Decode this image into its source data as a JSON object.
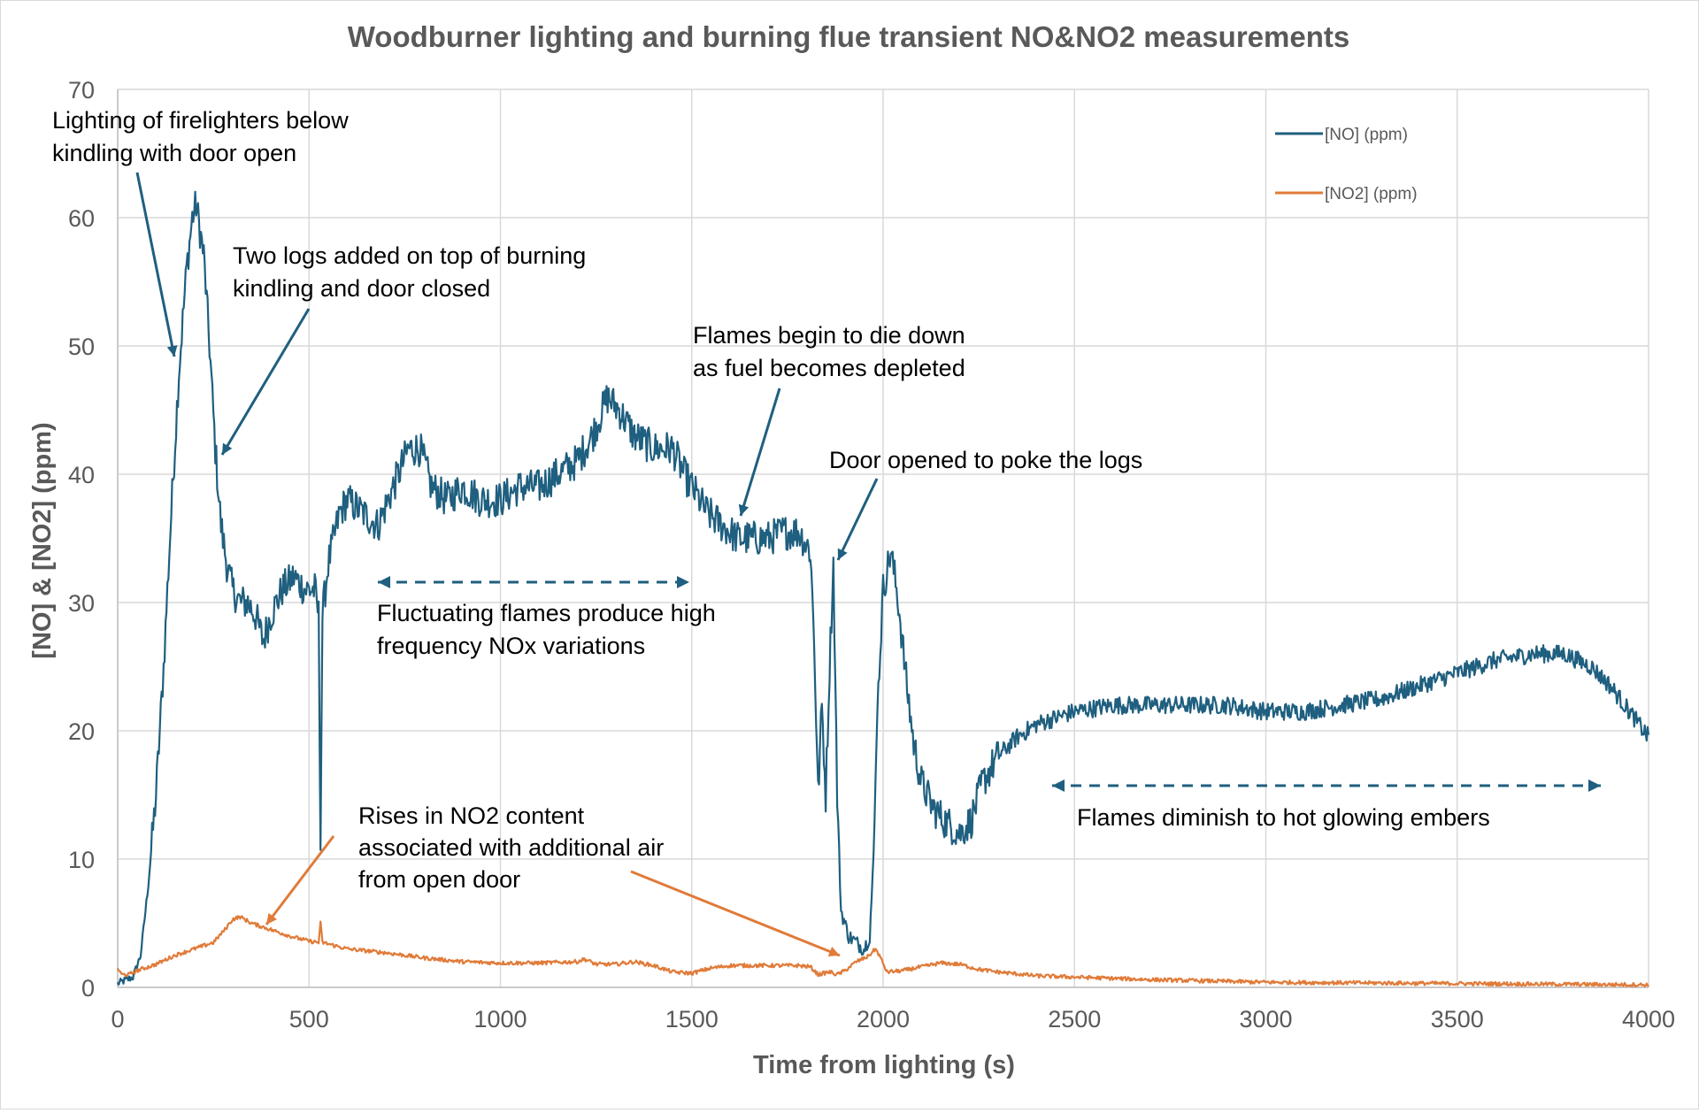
{
  "chart_data": {
    "type": "line",
    "title": "Woodburner lighting and burning flue transient NO&NO2 measurements",
    "xlabel": "Time from lighting (s)",
    "ylabel": "[NO] & [NO2] (ppm)",
    "xlim": [
      0,
      4000
    ],
    "ylim": [
      0,
      70
    ],
    "xticks": [
      "0",
      "500",
      "1000",
      "1500",
      "2000",
      "2500",
      "3000",
      "3500",
      "4000"
    ],
    "yticks": [
      "0",
      "10",
      "20",
      "30",
      "40",
      "50",
      "60",
      "70"
    ],
    "grid": true,
    "legend_position": "top-right",
    "series": [
      {
        "name": "[NO] (ppm)",
        "color": "#1f5f7f",
        "noise": 1.4,
        "points": [
          [
            0,
            0.3
          ],
          [
            40,
            0.8
          ],
          [
            60,
            2.5
          ],
          [
            80,
            8
          ],
          [
            100,
            15
          ],
          [
            120,
            25
          ],
          [
            140,
            37
          ],
          [
            160,
            48
          ],
          [
            180,
            56
          ],
          [
            195,
            60
          ],
          [
            205,
            61
          ],
          [
            215,
            59
          ],
          [
            225,
            57
          ],
          [
            240,
            50
          ],
          [
            255,
            42
          ],
          [
            270,
            36
          ],
          [
            285,
            33
          ],
          [
            300,
            31
          ],
          [
            320,
            30
          ],
          [
            340,
            30
          ],
          [
            360,
            29
          ],
          [
            380,
            27
          ],
          [
            400,
            29
          ],
          [
            430,
            31
          ],
          [
            460,
            32
          ],
          [
            490,
            31
          ],
          [
            515,
            31
          ],
          [
            525,
            29
          ],
          [
            530,
            12
          ],
          [
            535,
            29
          ],
          [
            550,
            33
          ],
          [
            580,
            37
          ],
          [
            600,
            38
          ],
          [
            640,
            37
          ],
          [
            680,
            36
          ],
          [
            720,
            39
          ],
          [
            760,
            42
          ],
          [
            790,
            42
          ],
          [
            820,
            39
          ],
          [
            860,
            38
          ],
          [
            900,
            39
          ],
          [
            950,
            38
          ],
          [
            1000,
            38
          ],
          [
            1050,
            39
          ],
          [
            1100,
            39
          ],
          [
            1150,
            40
          ],
          [
            1200,
            41
          ],
          [
            1240,
            43
          ],
          [
            1280,
            46
          ],
          [
            1310,
            45
          ],
          [
            1350,
            43
          ],
          [
            1400,
            42
          ],
          [
            1450,
            42
          ],
          [
            1480,
            40
          ],
          [
            1500,
            39
          ],
          [
            1540,
            37
          ],
          [
            1580,
            36
          ],
          [
            1620,
            35
          ],
          [
            1660,
            35
          ],
          [
            1700,
            35
          ],
          [
            1740,
            35.5
          ],
          [
            1780,
            35.5
          ],
          [
            1810,
            34
          ],
          [
            1820,
            27
          ],
          [
            1830,
            15
          ],
          [
            1840,
            22
          ],
          [
            1850,
            15
          ],
          [
            1860,
            25
          ],
          [
            1870,
            33
          ],
          [
            1880,
            15
          ],
          [
            1890,
            6
          ],
          [
            1910,
            4
          ],
          [
            1930,
            3.5
          ],
          [
            1950,
            3
          ],
          [
            1965,
            4
          ],
          [
            1975,
            10
          ],
          [
            1985,
            22
          ],
          [
            2000,
            31
          ],
          [
            2020,
            34
          ],
          [
            2040,
            30
          ],
          [
            2060,
            24
          ],
          [
            2080,
            19
          ],
          [
            2100,
            16
          ],
          [
            2130,
            14
          ],
          [
            2160,
            13
          ],
          [
            2200,
            12
          ],
          [
            2230,
            13
          ],
          [
            2260,
            16
          ],
          [
            2300,
            18
          ],
          [
            2350,
            19.5
          ],
          [
            2400,
            20.5
          ],
          [
            2500,
            21.5
          ],
          [
            2600,
            22
          ],
          [
            2700,
            22
          ],
          [
            2800,
            22
          ],
          [
            2900,
            22
          ],
          [
            3000,
            21.5
          ],
          [
            3100,
            21.5
          ],
          [
            3200,
            22
          ],
          [
            3300,
            22.5
          ],
          [
            3400,
            23.5
          ],
          [
            3500,
            24.5
          ],
          [
            3600,
            25.5
          ],
          [
            3700,
            26
          ],
          [
            3780,
            26
          ],
          [
            3850,
            25
          ],
          [
            3900,
            23.5
          ],
          [
            3950,
            21.5
          ],
          [
            4000,
            19.5
          ]
        ]
      },
      {
        "name": "[NO2] (ppm)",
        "color": "#e07b39",
        "noise": 0.15,
        "points": [
          [
            0,
            1.5
          ],
          [
            10,
            1.0
          ],
          [
            30,
            1.0
          ],
          [
            50,
            1.3
          ],
          [
            100,
            1.8
          ],
          [
            150,
            2.5
          ],
          [
            200,
            3.0
          ],
          [
            250,
            3.5
          ],
          [
            280,
            4.5
          ],
          [
            300,
            5.3
          ],
          [
            320,
            5.5
          ],
          [
            350,
            5.0
          ],
          [
            400,
            4.5
          ],
          [
            450,
            4.0
          ],
          [
            500,
            3.6
          ],
          [
            525,
            3.5
          ],
          [
            530,
            5.0
          ],
          [
            535,
            3.5
          ],
          [
            600,
            3.0
          ],
          [
            700,
            2.7
          ],
          [
            800,
            2.3
          ],
          [
            900,
            2.0
          ],
          [
            1000,
            1.9
          ],
          [
            1100,
            1.9
          ],
          [
            1200,
            2.0
          ],
          [
            1220,
            2.2
          ],
          [
            1250,
            1.8
          ],
          [
            1300,
            1.8
          ],
          [
            1350,
            2.0
          ],
          [
            1400,
            1.7
          ],
          [
            1450,
            1.2
          ],
          [
            1500,
            1.1
          ],
          [
            1550,
            1.5
          ],
          [
            1600,
            1.7
          ],
          [
            1700,
            1.7
          ],
          [
            1780,
            1.7
          ],
          [
            1810,
            1.6
          ],
          [
            1830,
            1.0
          ],
          [
            1860,
            1.2
          ],
          [
            1880,
            1.0
          ],
          [
            1900,
            1.3
          ],
          [
            1930,
            2.0
          ],
          [
            1960,
            2.4
          ],
          [
            1980,
            3.0
          ],
          [
            1990,
            2.5
          ],
          [
            2010,
            1.2
          ],
          [
            2050,
            1.3
          ],
          [
            2100,
            1.6
          ],
          [
            2150,
            1.9
          ],
          [
            2200,
            1.8
          ],
          [
            2250,
            1.4
          ],
          [
            2300,
            1.2
          ],
          [
            2400,
            0.9
          ],
          [
            2500,
            0.8
          ],
          [
            2700,
            0.6
          ],
          [
            3000,
            0.4
          ],
          [
            3500,
            0.3
          ],
          [
            4000,
            0.2
          ]
        ]
      }
    ],
    "annotations": [
      {
        "id": "lighting",
        "lines": [
          "Lighting of firelighters below",
          "kindling with door open"
        ]
      },
      {
        "id": "logs",
        "lines": [
          "Two logs added on top of burning",
          "kindling and door closed"
        ]
      },
      {
        "id": "dieDown",
        "lines": [
          "Flames begin to die down",
          "as fuel becomes depleted"
        ]
      },
      {
        "id": "door",
        "lines": [
          "Door opened to poke the logs"
        ]
      },
      {
        "id": "fluct",
        "lines": [
          "Fluctuating flames produce high",
          "frequency NOx variations"
        ]
      },
      {
        "id": "no2rise",
        "lines": [
          "Rises in NO2 content",
          "associated with additional air",
          "from open door"
        ]
      },
      {
        "id": "embers",
        "lines": [
          "Flames diminish to hot glowing embers"
        ]
      }
    ]
  }
}
